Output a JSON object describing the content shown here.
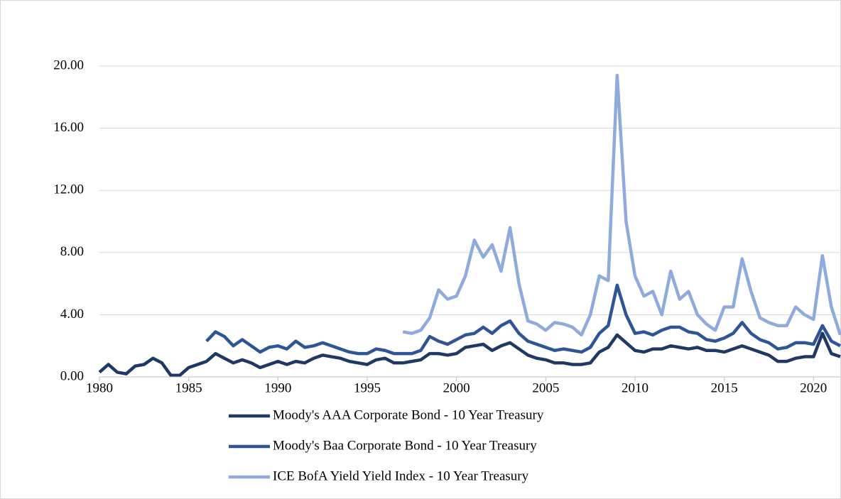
{
  "chart_data": {
    "type": "line",
    "x": [
      1980,
      1980.5,
      1981,
      1981.5,
      1982,
      1982.5,
      1983,
      1983.5,
      1984,
      1984.5,
      1985,
      1985.5,
      1986,
      1986.5,
      1987,
      1987.5,
      1988,
      1988.5,
      1989,
      1989.5,
      1990,
      1990.5,
      1991,
      1991.5,
      1992,
      1992.5,
      1993,
      1993.5,
      1994,
      1994.5,
      1995,
      1995.5,
      1996,
      1996.5,
      1997,
      1997.5,
      1998,
      1998.5,
      1999,
      1999.5,
      2000,
      2000.5,
      2001,
      2001.5,
      2002,
      2002.5,
      2003,
      2003.5,
      2004,
      2004.5,
      2005,
      2005.5,
      2006,
      2006.5,
      2007,
      2007.5,
      2008,
      2008.5,
      2009,
      2009.5,
      2010,
      2010.5,
      2011,
      2011.5,
      2012,
      2012.5,
      2013,
      2013.5,
      2014,
      2014.5,
      2015,
      2015.5,
      2016,
      2016.5,
      2017,
      2017.5,
      2018,
      2018.5,
      2019,
      2019.5,
      2020,
      2020.5,
      2021,
      2021.5
    ],
    "series": [
      {
        "name": "Moody's AAA Corporate Bond - 10 Year Treasury",
        "color": "#203864",
        "values": [
          0.3,
          0.8,
          0.3,
          0.2,
          0.7,
          0.8,
          1.2,
          0.9,
          0.1,
          0.1,
          0.6,
          0.8,
          1.0,
          1.5,
          1.2,
          0.9,
          1.1,
          0.9,
          0.6,
          0.8,
          1.0,
          0.8,
          1.0,
          0.9,
          1.2,
          1.4,
          1.3,
          1.2,
          1.0,
          0.9,
          0.8,
          1.1,
          1.2,
          0.9,
          0.9,
          1.0,
          1.1,
          1.5,
          1.5,
          1.4,
          1.5,
          1.9,
          2.0,
          2.1,
          1.7,
          2.0,
          2.2,
          1.8,
          1.4,
          1.2,
          1.1,
          0.9,
          0.9,
          0.8,
          0.8,
          0.9,
          1.6,
          1.9,
          2.7,
          2.2,
          1.7,
          1.6,
          1.8,
          1.8,
          2.0,
          1.9,
          1.8,
          1.9,
          1.7,
          1.7,
          1.6,
          1.8,
          2.0,
          1.8,
          1.6,
          1.4,
          1.0,
          1.0,
          1.2,
          1.3,
          1.3,
          2.8,
          1.5,
          1.3
        ]
      },
      {
        "name": "Moody's Baa Corporate Bond - 10 Year Treasury",
        "color": "#2f5597",
        "values": [
          null,
          null,
          null,
          null,
          null,
          null,
          null,
          null,
          null,
          null,
          null,
          null,
          2.3,
          2.9,
          2.6,
          2.0,
          2.4,
          2.0,
          1.6,
          1.9,
          2.0,
          1.8,
          2.3,
          1.9,
          2.0,
          2.2,
          2.0,
          1.8,
          1.6,
          1.5,
          1.5,
          1.8,
          1.7,
          1.5,
          1.5,
          1.5,
          1.7,
          2.6,
          2.3,
          2.1,
          2.4,
          2.7,
          2.8,
          3.2,
          2.8,
          3.3,
          3.6,
          2.8,
          2.3,
          2.1,
          1.9,
          1.7,
          1.8,
          1.7,
          1.6,
          1.9,
          2.8,
          3.3,
          5.9,
          4.0,
          2.8,
          2.9,
          2.7,
          3.0,
          3.2,
          3.2,
          2.9,
          2.8,
          2.4,
          2.3,
          2.5,
          2.8,
          3.5,
          2.8,
          2.4,
          2.2,
          1.8,
          1.9,
          2.2,
          2.2,
          2.1,
          3.3,
          2.3,
          2.0
        ]
      },
      {
        "name": "ICE BofA Yield Yield Index - 10 Year Treasury",
        "color": "#8faadc",
        "values": [
          null,
          null,
          null,
          null,
          null,
          null,
          null,
          null,
          null,
          null,
          null,
          null,
          null,
          null,
          null,
          null,
          null,
          null,
          null,
          null,
          null,
          null,
          null,
          null,
          null,
          null,
          null,
          null,
          null,
          null,
          null,
          null,
          null,
          null,
          2.9,
          2.8,
          3.0,
          3.8,
          5.6,
          5.0,
          5.2,
          6.5,
          8.8,
          7.7,
          8.5,
          6.8,
          9.6,
          6.0,
          3.6,
          3.4,
          3.0,
          3.5,
          3.4,
          3.2,
          2.7,
          4.0,
          6.5,
          6.2,
          19.4,
          10.0,
          6.5,
          5.2,
          5.5,
          4.0,
          6.8,
          5.0,
          5.5,
          4.0,
          3.4,
          3.0,
          4.5,
          4.5,
          7.6,
          5.5,
          3.8,
          3.5,
          3.3,
          3.3,
          4.5,
          4.0,
          3.7,
          7.8,
          4.5,
          2.7
        ]
      }
    ],
    "xlim": [
      1980,
      2021.5
    ],
    "xticks": [
      1980,
      1985,
      1990,
      1995,
      2000,
      2005,
      2010,
      2015,
      2020
    ],
    "ylim": [
      0,
      20
    ],
    "yticks": [
      {
        "value": 0,
        "label": "0.00"
      },
      {
        "value": 4,
        "label": "4.00"
      },
      {
        "value": 8,
        "label": "8.00"
      },
      {
        "value": 12,
        "label": "12.00"
      },
      {
        "value": 16,
        "label": "16.00"
      },
      {
        "value": 20,
        "label": "20.00"
      }
    ],
    "grid": true,
    "legend": "bottom"
  }
}
